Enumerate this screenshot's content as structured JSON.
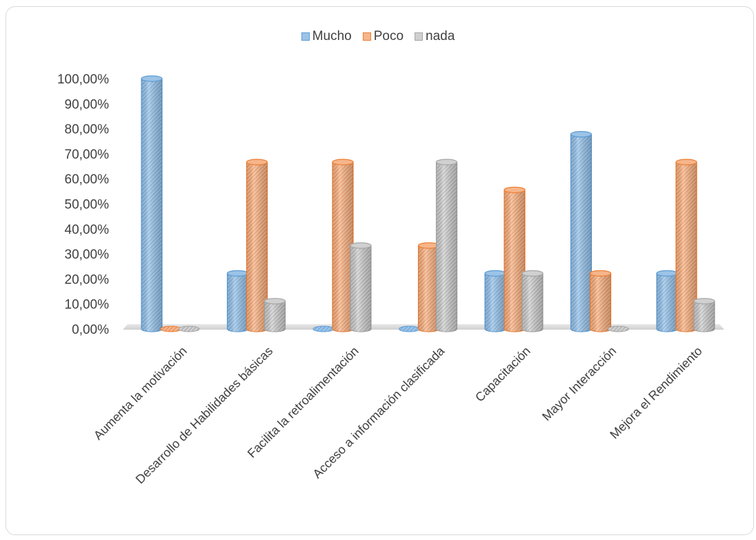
{
  "chart_data": {
    "type": "bar",
    "style": "3d-cylinder",
    "categories": [
      "Aumenta la motivación",
      "Desarrollo de Habilidades básicas",
      "Facilita la retroalimentación",
      "Acceso a información clasificada",
      "Capacitación",
      "Mayor Interacción",
      "Mejora el Rendimiento"
    ],
    "series": [
      {
        "name": "Mucho",
        "color": "#5b9bd5",
        "values": [
          100,
          22.22,
          0,
          0,
          22.22,
          77.78,
          22.22
        ]
      },
      {
        "name": "Poco",
        "color": "#ed7d31",
        "values": [
          0,
          66.67,
          66.67,
          33.33,
          55.56,
          22.22,
          66.67
        ]
      },
      {
        "name": "nada",
        "color": "#a5a5a5",
        "values": [
          0,
          11.11,
          33.33,
          66.67,
          22.22,
          0,
          11.11
        ]
      }
    ],
    "ylim": [
      0,
      100
    ],
    "yticks": [
      "0,00%",
      "10,00%",
      "20,00%",
      "30,00%",
      "40,00%",
      "50,00%",
      "60,00%",
      "70,00%",
      "80,00%",
      "90,00%",
      "100,00%"
    ],
    "legend_position": "top",
    "grid": false
  }
}
